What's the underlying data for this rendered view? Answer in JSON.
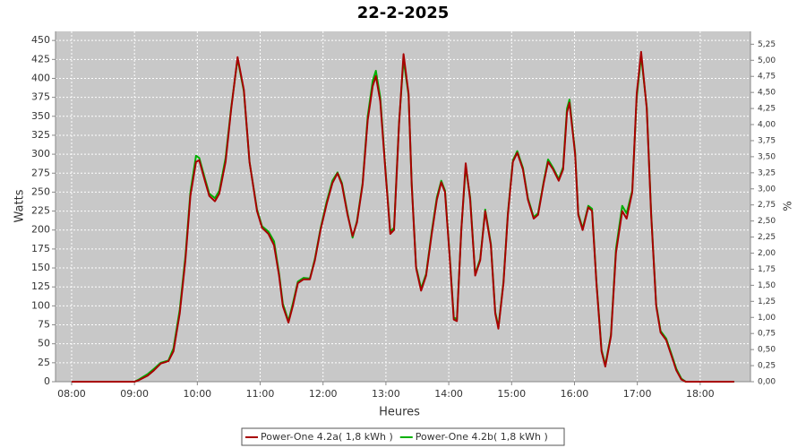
{
  "chart_data": {
    "type": "line",
    "title": "22-2-2025",
    "x_label": "Heures",
    "y_label": "Watts",
    "y2_label": "%",
    "x": [
      8.0,
      9.0,
      9.07,
      9.21,
      9.31,
      9.42,
      9.54,
      9.62,
      9.72,
      9.81,
      9.89,
      9.98,
      10.03,
      10.12,
      10.19,
      10.28,
      10.35,
      10.45,
      10.54,
      10.64,
      10.74,
      10.83,
      10.95,
      11.03,
      11.13,
      11.22,
      11.3,
      11.36,
      11.45,
      11.52,
      11.6,
      11.69,
      11.79,
      11.87,
      11.96,
      12.06,
      12.15,
      12.23,
      12.3,
      12.39,
      12.47,
      12.54,
      12.63,
      12.71,
      12.79,
      12.84,
      12.91,
      13.0,
      13.07,
      13.13,
      13.21,
      13.28,
      13.36,
      13.41,
      13.48,
      13.56,
      13.64,
      13.73,
      13.81,
      13.88,
      13.94,
      14.01,
      14.08,
      14.13,
      14.2,
      14.27,
      14.34,
      14.42,
      14.5,
      14.58,
      14.67,
      14.74,
      14.79,
      14.87,
      14.94,
      15.02,
      15.09,
      15.18,
      15.26,
      15.35,
      15.42,
      15.51,
      15.58,
      15.66,
      15.75,
      15.82,
      15.88,
      15.92,
      16.01,
      16.06,
      16.13,
      16.22,
      16.28,
      16.35,
      16.43,
      16.49,
      16.58,
      16.66,
      16.76,
      16.83,
      16.92,
      16.99,
      17.06,
      17.15,
      17.22,
      17.3,
      17.37,
      17.46,
      17.54,
      17.62,
      17.7,
      17.77,
      18.54
    ],
    "series": [
      {
        "name": "Power-One 4.2b( 1,8 kWh )",
        "color": "#00b000",
        "values": [
          0,
          0,
          3,
          10,
          17,
          25,
          28,
          44,
          95,
          165,
          250,
          298,
          295,
          268,
          248,
          242,
          252,
          295,
          362,
          426,
          383,
          290,
          227,
          205,
          198,
          185,
          143,
          103,
          80,
          103,
          132,
          137,
          136,
          162,
          202,
          238,
          265,
          276,
          262,
          222,
          190,
          212,
          262,
          350,
          397,
          410,
          375,
          272,
          198,
          203,
          342,
          425,
          378,
          262,
          152,
          123,
          142,
          198,
          243,
          265,
          252,
          172,
          85,
          82,
          200,
          283,
          243,
          142,
          162,
          227,
          182,
          92,
          72,
          132,
          222,
          292,
          304,
          282,
          242,
          217,
          222,
          264,
          293,
          282,
          267,
          283,
          360,
          372,
          302,
          222,
          202,
          232,
          228,
          132,
          42,
          22,
          62,
          175,
          232,
          222,
          252,
          375,
          430,
          362,
          222,
          102,
          67,
          57,
          37,
          17,
          4,
          0,
          0
        ]
      },
      {
        "name": "Power-One 4.2a( 1,8 kWh )",
        "color": "#a80000",
        "values": [
          0,
          0,
          2,
          8,
          15,
          24,
          27,
          40,
          90,
          160,
          245,
          290,
          292,
          265,
          245,
          238,
          248,
          290,
          360,
          428,
          385,
          290,
          225,
          203,
          195,
          180,
          140,
          100,
          78,
          100,
          130,
          135,
          135,
          160,
          200,
          235,
          262,
          275,
          260,
          220,
          192,
          210,
          260,
          345,
          390,
          403,
          370,
          270,
          195,
          200,
          340,
          432,
          380,
          260,
          150,
          120,
          140,
          195,
          240,
          263,
          250,
          170,
          82,
          80,
          200,
          288,
          240,
          140,
          160,
          225,
          180,
          90,
          70,
          130,
          220,
          290,
          302,
          280,
          240,
          215,
          220,
          262,
          290,
          280,
          265,
          280,
          355,
          368,
          300,
          220,
          200,
          230,
          225,
          130,
          40,
          20,
          60,
          170,
          225,
          215,
          250,
          380,
          435,
          360,
          220,
          100,
          65,
          55,
          35,
          15,
          3,
          0,
          0
        ]
      }
    ],
    "xlim": [
      7.744,
      18.8
    ],
    "xticks": [
      {
        "value": 8,
        "label": "08:00"
      },
      {
        "value": 9,
        "label": "09:00"
      },
      {
        "value": 10,
        "label": "10:00"
      },
      {
        "value": 11,
        "label": "11:00"
      },
      {
        "value": 12,
        "label": "12:00"
      },
      {
        "value": 13,
        "label": "13:00"
      },
      {
        "value": 14,
        "label": "14:00"
      },
      {
        "value": 15,
        "label": "15:00"
      },
      {
        "value": 16,
        "label": "16:00"
      },
      {
        "value": 17,
        "label": "17:00"
      },
      {
        "value": 18,
        "label": "18:00"
      }
    ],
    "ylim": [
      0,
      462
    ],
    "yticks": [
      0,
      25,
      50,
      75,
      100,
      125,
      150,
      175,
      200,
      225,
      250,
      275,
      300,
      325,
      350,
      375,
      400,
      425,
      450
    ],
    "y2lim": [
      0,
      5.45
    ],
    "y2ticks": [
      {
        "value": 0,
        "label": "0,00"
      },
      {
        "value": 0.25,
        "label": "0,25"
      },
      {
        "value": 0.5,
        "label": "0,50"
      },
      {
        "value": 0.75,
        "label": "0,75"
      },
      {
        "value": 1,
        "label": "1,00"
      },
      {
        "value": 1.25,
        "label": "1,25"
      },
      {
        "value": 1.5,
        "label": "1,50"
      },
      {
        "value": 1.75,
        "label": "1,75"
      },
      {
        "value": 2,
        "label": "2,00"
      },
      {
        "value": 2.25,
        "label": "2,25"
      },
      {
        "value": 2.5,
        "label": "2,50"
      },
      {
        "value": 2.75,
        "label": "2,75"
      },
      {
        "value": 3,
        "label": "3,00"
      },
      {
        "value": 3.25,
        "label": "3,25"
      },
      {
        "value": 3.5,
        "label": "3,50"
      },
      {
        "value": 3.75,
        "label": "3,75"
      },
      {
        "value": 4,
        "label": "4,00"
      },
      {
        "value": 4.25,
        "label": "4,25"
      },
      {
        "value": 4.5,
        "label": "4,50"
      },
      {
        "value": 4.75,
        "label": "4,75"
      },
      {
        "value": 5,
        "label": "5,00"
      },
      {
        "value": 5.25,
        "label": "5,25"
      }
    ],
    "grid": true
  }
}
